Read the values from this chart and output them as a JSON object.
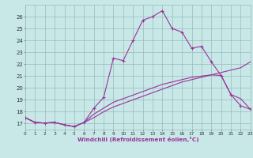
{
  "bg_color": "#c8e8e8",
  "grid_color": "#99bbbb",
  "line_color": "#993399",
  "xlabel": "Windchill (Refroidissement éolien,°C)",
  "xlim": [
    0,
    23
  ],
  "ylim": [
    16.5,
    27.0
  ],
  "xticks": [
    0,
    1,
    2,
    3,
    4,
    5,
    6,
    7,
    8,
    9,
    10,
    11,
    12,
    13,
    14,
    15,
    16,
    17,
    18,
    19,
    20,
    21,
    22,
    23
  ],
  "yticks": [
    17,
    18,
    19,
    20,
    21,
    22,
    23,
    24,
    25,
    26
  ],
  "curve_peaked_x": [
    0,
    1,
    2,
    3,
    4,
    5,
    6,
    7,
    8,
    9,
    10,
    11,
    12,
    13,
    14,
    15,
    16,
    17,
    18,
    19,
    20,
    21,
    22,
    23
  ],
  "curve_peaked_y": [
    17.5,
    17.1,
    17.05,
    17.1,
    16.9,
    16.75,
    17.1,
    18.3,
    19.2,
    22.5,
    22.3,
    24.0,
    25.7,
    26.0,
    26.5,
    25.0,
    24.7,
    23.35,
    23.5,
    22.2,
    21.05,
    19.45,
    18.5,
    18.2
  ],
  "curve_gradual_x": [
    0,
    1,
    2,
    3,
    4,
    5,
    6,
    7,
    8,
    9,
    10,
    11,
    12,
    13,
    14,
    15,
    16,
    17,
    18,
    19,
    20,
    21,
    22,
    23
  ],
  "curve_gradual_y": [
    17.5,
    17.1,
    17.05,
    17.1,
    16.9,
    16.75,
    17.1,
    17.5,
    18.0,
    18.4,
    18.7,
    19.0,
    19.3,
    19.6,
    19.9,
    20.2,
    20.5,
    20.7,
    20.9,
    21.1,
    21.3,
    21.5,
    21.7,
    22.2
  ],
  "curve_tri_x": [
    0,
    1,
    2,
    3,
    4,
    5,
    6,
    7,
    8,
    9,
    10,
    11,
    12,
    13,
    14,
    15,
    16,
    17,
    18,
    19,
    20,
    21,
    22,
    23
  ],
  "curve_tri_y": [
    17.5,
    17.1,
    17.05,
    17.1,
    16.9,
    16.75,
    17.1,
    17.8,
    18.3,
    18.8,
    19.1,
    19.4,
    19.7,
    20.0,
    20.3,
    20.5,
    20.7,
    20.9,
    21.0,
    21.1,
    21.05,
    19.45,
    19.1,
    18.2
  ]
}
